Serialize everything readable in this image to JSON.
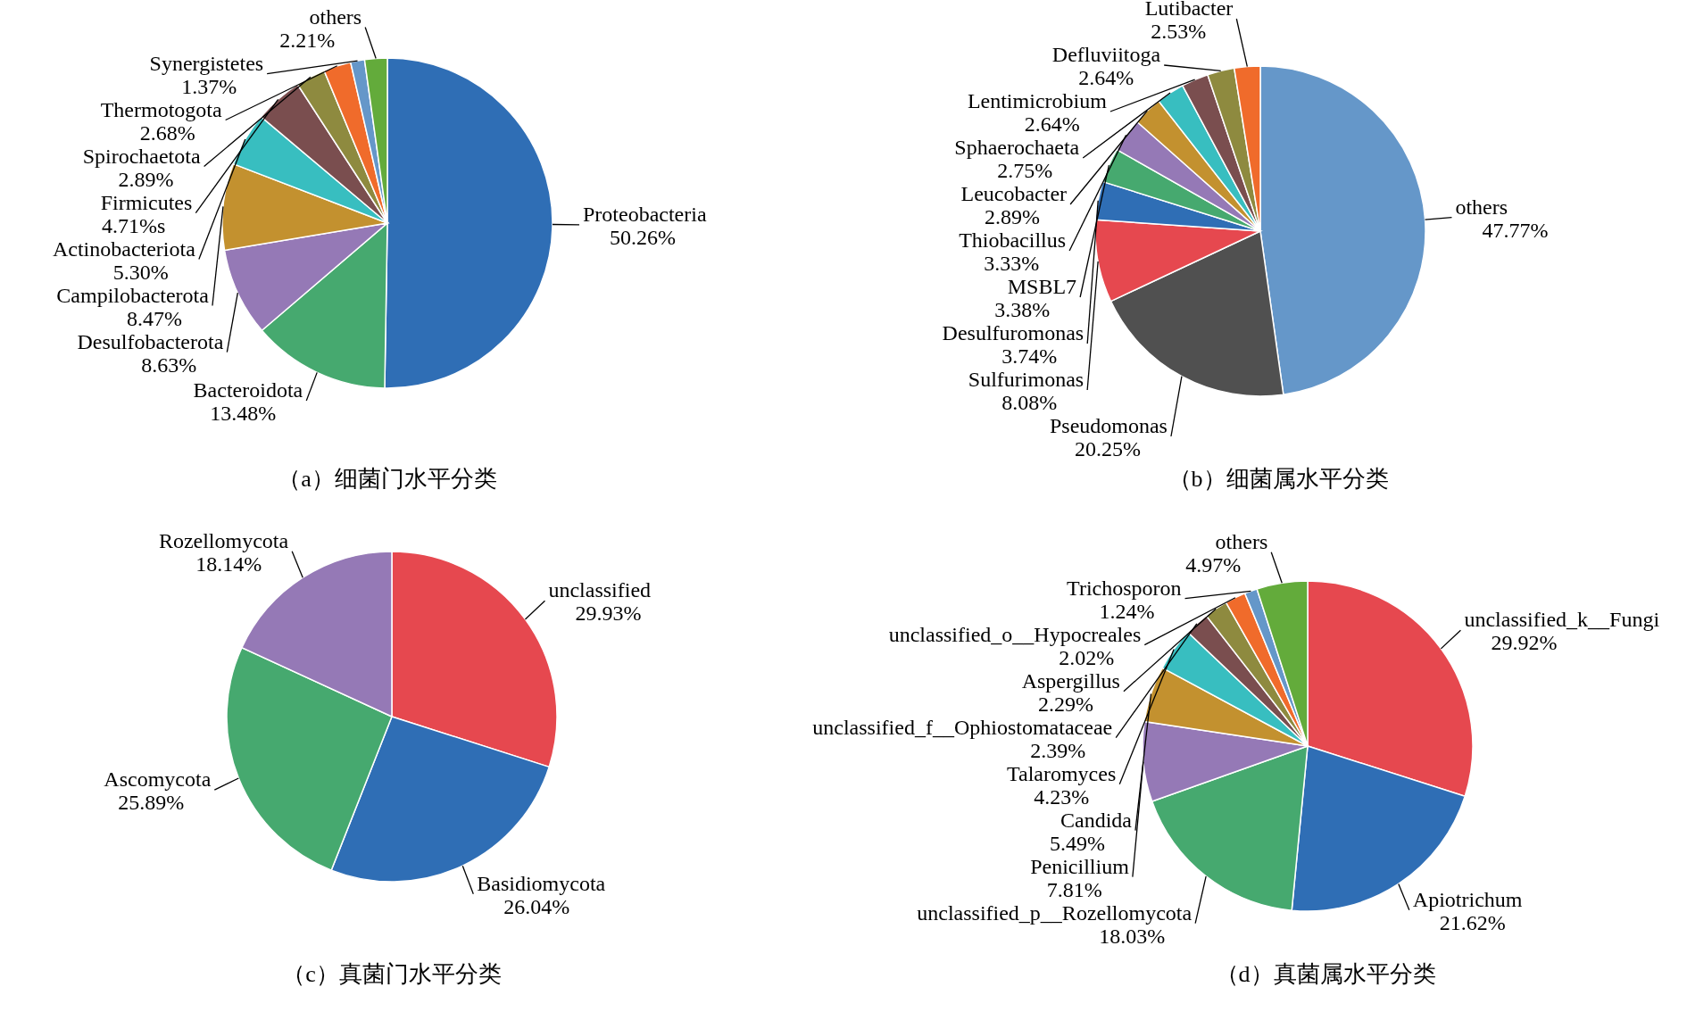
{
  "chart_data": [
    {
      "type": "pie",
      "title": "（a）细菌门水平分类",
      "categories": [
        "Proteobacteria",
        "Bacteroidota",
        "Desulfobacterota",
        "Campilobacterota",
        "Actinobacteriota",
        "Firmicutes",
        "Spirochaetota",
        "Thermotogota",
        "Synergistetes",
        "others"
      ],
      "values": [
        50.26,
        13.48,
        8.63,
        8.47,
        5.3,
        4.71,
        2.89,
        2.68,
        1.37,
        2.21
      ],
      "value_labels": [
        "50.26%",
        "13.48%",
        "8.63%",
        "8.47%",
        "5.30%",
        "4.71%s",
        "2.89%",
        "2.68%",
        "1.37%",
        "2.21%"
      ],
      "colors": [
        "#2f6eb5",
        "#46a96f",
        "#9579b6",
        "#c3912f",
        "#38bec0",
        "#7a4e4f",
        "#8e8a3f",
        "#f06b2b",
        "#6597c9",
        "#63ab3b"
      ]
    },
    {
      "type": "pie",
      "title": "（b）细菌属水平分类",
      "categories": [
        "others",
        "Pseudomonas",
        "Sulfurimonas",
        "Desulfuromonas",
        "MSBL7",
        "Thiobacillus",
        "Leucobacter",
        "Sphaerochaeta",
        "Lentimicrobium",
        "Defluviitoga",
        "Lutibacter"
      ],
      "values": [
        47.77,
        20.25,
        8.08,
        3.74,
        3.38,
        3.33,
        2.89,
        2.75,
        2.64,
        2.64,
        2.53
      ],
      "value_labels": [
        "47.77%",
        "20.25%",
        "8.08%",
        "3.74%",
        "3.38%",
        "3.33%",
        "2.89%",
        "2.75%",
        "2.64%",
        "2.64%",
        "2.53%"
      ],
      "colors": [
        "#6597c9",
        "#505050",
        "#e6484f",
        "#2f6eb5",
        "#46a96f",
        "#9579b6",
        "#c3912f",
        "#38bec0",
        "#7a4e4f",
        "#8e8a3f",
        "#f06b2b"
      ]
    },
    {
      "type": "pie",
      "title": "（c）真菌门水平分类",
      "categories": [
        "unclassified",
        "Basidiomycota",
        "Ascomycota",
        "Rozellomycota"
      ],
      "values": [
        29.93,
        26.04,
        25.89,
        18.14
      ],
      "value_labels": [
        "29.93%",
        "26.04%",
        "25.89%",
        "18.14%"
      ],
      "colors": [
        "#e6484f",
        "#2f6eb5",
        "#46a96f",
        "#9579b6"
      ]
    },
    {
      "type": "pie",
      "title": "（d）真菌属水平分类",
      "categories": [
        "unclassified_k__Fungi",
        "Apiotrichum",
        "unclassified_p__Rozellomycota",
        "Penicillium",
        "Candida",
        "Talaromyces",
        "unclassified_f__Ophiostomataceae",
        "Aspergillus",
        "unclassified_o__Hypocreales",
        "Trichosporon",
        "others"
      ],
      "values": [
        29.92,
        21.62,
        18.03,
        7.81,
        5.49,
        4.23,
        2.39,
        2.29,
        2.02,
        1.24,
        4.97
      ],
      "value_labels": [
        "29.92%",
        "21.62%",
        "18.03%",
        "7.81%",
        "5.49%",
        "4.23%",
        "2.39%",
        "2.29%",
        "2.02%",
        "1.24%",
        "4.97%"
      ],
      "colors": [
        "#e6484f",
        "#2f6eb5",
        "#46a96f",
        "#9579b6",
        "#c3912f",
        "#38bec0",
        "#7a4e4f",
        "#8e8a3f",
        "#f06b2b",
        "#6597c9",
        "#63ab3b"
      ]
    }
  ]
}
